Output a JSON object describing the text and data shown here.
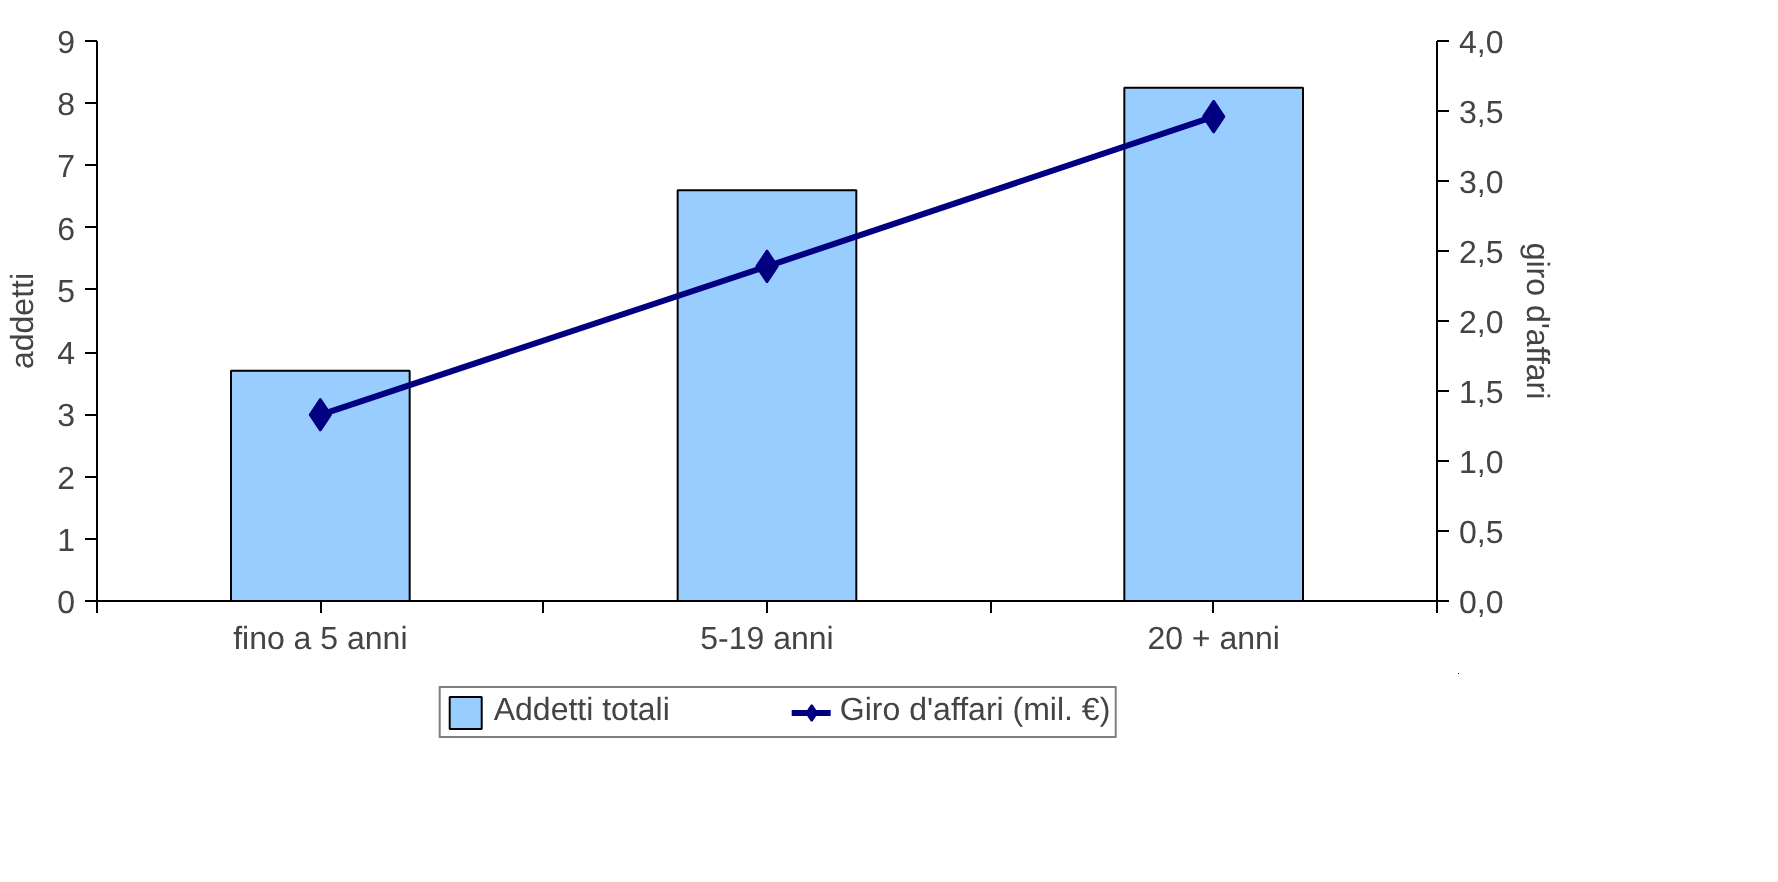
{
  "chart_data": {
    "type": "bar",
    "categories": [
      "fino a 5 anni",
      "5-19 anni",
      "20 + anni"
    ],
    "ylabel": "addetti",
    "y2label": "giro d'affari",
    "ylim": [
      0,
      9
    ],
    "yticks": [
      0,
      1,
      2,
      3,
      4,
      5,
      6,
      7,
      8,
      9
    ],
    "y2lim": [
      0,
      4
    ],
    "y2ticks": [
      {
        "value": 0,
        "label": "0,0"
      },
      {
        "value": 0.5,
        "label": "0,5"
      },
      {
        "value": 1,
        "label": "1,0"
      },
      {
        "value": 1.5,
        "label": "1,5"
      },
      {
        "value": 2,
        "label": "2,0"
      },
      {
        "value": 2.5,
        "label": "2,5"
      },
      {
        "value": 3,
        "label": "3,0"
      },
      {
        "value": 3.5,
        "label": "3,5"
      },
      {
        "value": 4,
        "label": "4,0"
      }
    ],
    "series": [
      {
        "name": "Addetti totali",
        "color": "#99ccff",
        "values": [
          3.7,
          6.6,
          8.25
        ]
      },
      {
        "name": "Giro d'affari (mil. €)",
        "type": "line",
        "axis": "y2",
        "color": "#000080",
        "marker": "diamond",
        "values": [
          1.33,
          2.39,
          3.46
        ]
      }
    ],
    "legend": "bottom",
    "grid": false
  }
}
